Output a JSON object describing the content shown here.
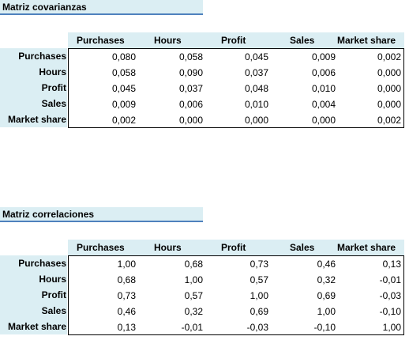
{
  "covariance": {
    "title": "Matriz covarianzas",
    "col_headers": [
      "Purchases",
      "Hours",
      "Profit",
      "Sales",
      "Market share"
    ],
    "row_headers": [
      "Purchases",
      "Hours",
      "Profit",
      "Sales",
      "Market share"
    ],
    "rows": [
      [
        "0,080",
        "0,058",
        "0,045",
        "0,009",
        "0,002"
      ],
      [
        "0,058",
        "0,090",
        "0,037",
        "0,006",
        "0,000"
      ],
      [
        "0,045",
        "0,037",
        "0,048",
        "0,010",
        "0,000"
      ],
      [
        "0,009",
        "0,006",
        "0,010",
        "0,004",
        "0,000"
      ],
      [
        "0,002",
        "0,000",
        "0,000",
        "0,000",
        "0,002"
      ]
    ]
  },
  "correlation": {
    "title": "Matriz correlaciones",
    "col_headers": [
      "Purchases",
      "Hours",
      "Profit",
      "Sales",
      "Market share"
    ],
    "row_headers": [
      "Purchases",
      "Hours",
      "Profit",
      "Sales",
      "Market share"
    ],
    "rows": [
      [
        "1,00",
        "0,68",
        "0,73",
        "0,46",
        "0,13"
      ],
      [
        "0,68",
        "1,00",
        "0,57",
        "0,32",
        "-0,01"
      ],
      [
        "0,73",
        "0,57",
        "1,00",
        "0,69",
        "-0,03"
      ],
      [
        "0,46",
        "0,32",
        "0,69",
        "1,00",
        "-0,10"
      ],
      [
        "0,13",
        "-0,01",
        "-0,03",
        "-0,10",
        "1,00"
      ]
    ]
  },
  "colors": {
    "header_fill": "#dbeef3",
    "title_underline": "#4f81bd",
    "border": "#000000"
  }
}
